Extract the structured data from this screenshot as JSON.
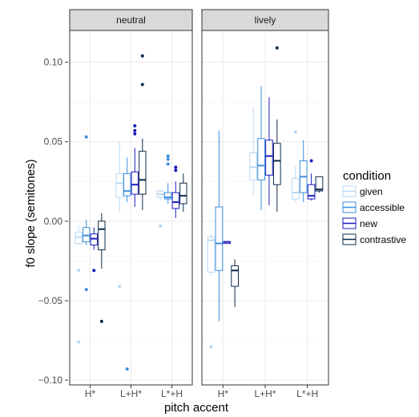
{
  "chart_data": {
    "type": "boxplot",
    "xlabel": "pitch accent",
    "ylabel": "f0 slope (semitones)",
    "ylim": [
      -0.103,
      0.12
    ],
    "yticks": [
      -0.1,
      -0.05,
      0.0,
      0.05,
      0.1
    ],
    "ytick_labels": [
      "−0.10",
      "−0.05",
      "0.00",
      "0.05",
      "0.10"
    ],
    "categories": [
      "H*",
      "L+H*",
      "L*+H"
    ],
    "legend": {
      "title": "condition",
      "position": "right",
      "entries": [
        {
          "name": "given",
          "color": "#b7d7f4"
        },
        {
          "name": "accessible",
          "color": "#3b8fdc"
        },
        {
          "name": "new",
          "color": "#1b1bbf"
        },
        {
          "name": "contrastive",
          "color": "#0b2a4a"
        }
      ]
    },
    "grid": true,
    "panels": [
      {
        "label": "neutral",
        "groups": [
          {
            "category": "H*",
            "boxes": [
              {
                "condition": "given",
                "lower": -0.015,
                "q1": -0.014,
                "median": -0.01,
                "q3": -0.007,
                "upper": -0.003,
                "outliers": [
                  -0.031,
                  -0.076
                ]
              },
              {
                "condition": "accessible",
                "lower": -0.015,
                "q1": -0.013,
                "median": -0.009,
                "q3": -0.004,
                "upper": 0.001,
                "outliers": [
                  0.053,
                  -0.043
                ]
              },
              {
                "condition": "new",
                "lower": -0.018,
                "q1": -0.015,
                "median": -0.011,
                "q3": -0.008,
                "upper": -0.004,
                "outliers": [
                  -0.031
                ]
              },
              {
                "condition": "contrastive",
                "lower": -0.03,
                "q1": -0.018,
                "median": -0.005,
                "q3": 0.0,
                "upper": 0.005,
                "outliers": [
                  -0.063
                ]
              }
            ]
          },
          {
            "category": "L+H*",
            "boxes": [
              {
                "condition": "given",
                "lower": 0.006,
                "q1": 0.015,
                "median": 0.024,
                "q3": 0.03,
                "upper": 0.05,
                "outliers": [
                  -0.041
                ]
              },
              {
                "condition": "accessible",
                "lower": 0.012,
                "q1": 0.016,
                "median": 0.019,
                "q3": 0.03,
                "upper": 0.04,
                "outliers": [
                  -0.093
                ]
              },
              {
                "condition": "new",
                "lower": 0.009,
                "q1": 0.017,
                "median": 0.023,
                "q3": 0.031,
                "upper": 0.046,
                "outliers": [
                  0.055,
                  0.057,
                  0.06
                ]
              },
              {
                "condition": "contrastive",
                "lower": 0.007,
                "q1": 0.017,
                "median": 0.026,
                "q3": 0.044,
                "upper": 0.052,
                "outliers": [
                  0.086,
                  0.104
                ]
              }
            ]
          },
          {
            "category": "L*+H",
            "boxes": [
              {
                "condition": "given",
                "lower": 0.013,
                "q1": 0.015,
                "median": 0.017,
                "q3": 0.019,
                "upper": 0.02,
                "outliers": [
                  -0.003
                ]
              },
              {
                "condition": "accessible",
                "lower": 0.011,
                "q1": 0.014,
                "median": 0.015,
                "q3": 0.018,
                "upper": 0.024,
                "outliers": [
                  0.036,
                  0.039,
                  0.041
                ]
              },
              {
                "condition": "new",
                "lower": 0.002,
                "q1": 0.008,
                "median": 0.012,
                "q3": 0.018,
                "upper": 0.025,
                "outliers": [
                  0.032,
                  0.034
                ]
              },
              {
                "condition": "contrastive",
                "lower": 0.006,
                "q1": 0.011,
                "median": 0.016,
                "q3": 0.024,
                "upper": 0.03,
                "outliers": []
              }
            ]
          }
        ]
      },
      {
        "label": "lively",
        "groups": [
          {
            "category": "H*",
            "boxes": [
              {
                "condition": "given",
                "lower": -0.034,
                "q1": -0.032,
                "median": -0.012,
                "q3": -0.01,
                "upper": -0.008,
                "outliers": [
                  -0.079
                ]
              },
              {
                "condition": "accessible",
                "lower": -0.063,
                "q1": -0.031,
                "median": -0.014,
                "q3": 0.009,
                "upper": 0.057,
                "outliers": []
              },
              {
                "condition": "new",
                "lower": -0.014,
                "q1": -0.014,
                "median": -0.013,
                "q3": -0.013,
                "upper": -0.013,
                "outliers": []
              },
              {
                "condition": "contrastive",
                "lower": -0.054,
                "q1": -0.041,
                "median": -0.031,
                "q3": -0.028,
                "upper": -0.024,
                "outliers": []
              }
            ]
          },
          {
            "category": "L+H*",
            "boxes": [
              {
                "condition": "given",
                "lower": 0.016,
                "q1": 0.026,
                "median": 0.034,
                "q3": 0.043,
                "upper": 0.072,
                "outliers": []
              },
              {
                "condition": "accessible",
                "lower": 0.007,
                "q1": 0.026,
                "median": 0.035,
                "q3": 0.052,
                "upper": 0.085,
                "outliers": []
              },
              {
                "condition": "new",
                "lower": 0.01,
                "q1": 0.029,
                "median": 0.041,
                "q3": 0.051,
                "upper": 0.078,
                "outliers": []
              },
              {
                "condition": "contrastive",
                "lower": 0.006,
                "q1": 0.023,
                "median": 0.038,
                "q3": 0.049,
                "upper": 0.064,
                "outliers": [
                  0.109
                ]
              }
            ]
          },
          {
            "category": "L*+H",
            "boxes": [
              {
                "condition": "given",
                "lower": 0.012,
                "q1": 0.014,
                "median": 0.018,
                "q3": 0.027,
                "upper": 0.035,
                "outliers": [
                  0.056
                ]
              },
              {
                "condition": "accessible",
                "lower": 0.012,
                "q1": 0.018,
                "median": 0.028,
                "q3": 0.038,
                "upper": 0.051,
                "outliers": []
              },
              {
                "condition": "new",
                "lower": 0.013,
                "q1": 0.014,
                "median": 0.016,
                "q3": 0.023,
                "upper": 0.03,
                "outliers": [
                  0.038
                ]
              },
              {
                "condition": "contrastive",
                "lower": 0.018,
                "q1": 0.019,
                "median": 0.02,
                "q3": 0.028,
                "upper": 0.028,
                "outliers": []
              }
            ]
          }
        ]
      }
    ]
  }
}
